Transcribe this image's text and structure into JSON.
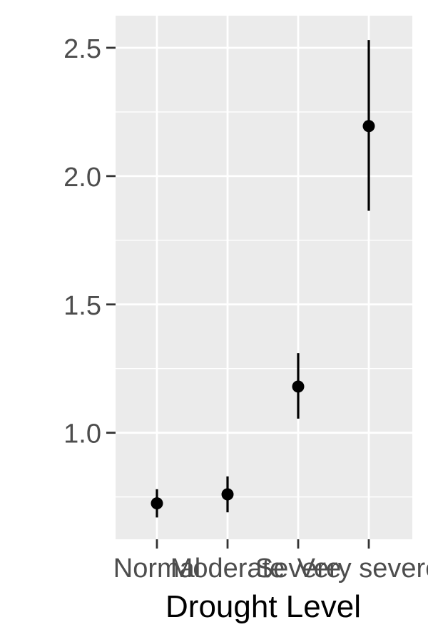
{
  "chart_data": {
    "type": "point-range",
    "title": "",
    "xlabel": "Drought Level",
    "ylabel": "",
    "categories": [
      "Normal",
      "Moderate",
      "Severe",
      "Very severe"
    ],
    "points": [
      {
        "category": "Normal",
        "value": 0.725,
        "lower": 0.67,
        "upper": 0.78
      },
      {
        "category": "Moderate",
        "value": 0.76,
        "lower": 0.69,
        "upper": 0.83
      },
      {
        "category": "Severe",
        "value": 1.18,
        "lower": 1.055,
        "upper": 1.31
      },
      {
        "category": "Very severe",
        "value": 2.195,
        "lower": 1.865,
        "upper": 2.53
      }
    ],
    "ylim": [
      0.585,
      2.625
    ],
    "yticks": [
      1.0,
      1.5,
      2.0,
      2.5
    ],
    "ytick_labels": [
      "1.0",
      "1.5",
      "2.0",
      "2.5"
    ],
    "yminor": [
      0.75,
      1.25,
      1.75,
      2.25
    ],
    "grid": true,
    "colors": {
      "panel": "#ebebeb",
      "grid": "#ffffff",
      "mark": "#000000",
      "tick_text": "#4d4d4d",
      "axis_title": "#000000"
    }
  }
}
